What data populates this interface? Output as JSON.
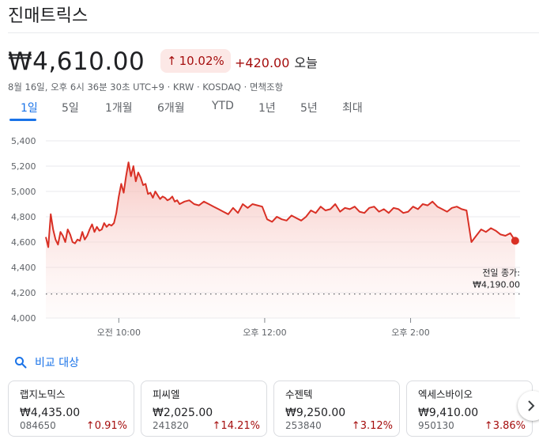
{
  "header": {
    "title": "진매트릭스"
  },
  "quote": {
    "price": "₩4,610.00",
    "change_pct": "10.02%",
    "change_abs": "+420.00",
    "change_period": "오늘",
    "meta": "8월 16일, 오후 6시 36분 30초 UTC+9 · KRW · KOSDAQ · 면책조항"
  },
  "tabs": [
    {
      "label": "1일",
      "active": true
    },
    {
      "label": "5일"
    },
    {
      "label": "1개월"
    },
    {
      "label": "6개월"
    },
    {
      "label": "YTD"
    },
    {
      "label": "1년"
    },
    {
      "label": "5년"
    },
    {
      "label": "최대"
    }
  ],
  "chart_data": {
    "type": "area",
    "y_ticks": [
      "5,400",
      "5,200",
      "5,000",
      "4,800",
      "4,600",
      "4,400",
      "4,200",
      "4,000"
    ],
    "ylim": [
      4000,
      5400
    ],
    "x_ticks": [
      {
        "label": "오전 10:00",
        "t": 60
      },
      {
        "label": "오후 12:00",
        "t": 180
      },
      {
        "label": "오후 2:00",
        "t": 300
      }
    ],
    "x_unit": "minutes since 09:00",
    "xlim": [
      0,
      390
    ],
    "previous_close": {
      "label": "전일 종가:",
      "value_label": "₩4,190.00",
      "value": 4190
    },
    "line_color": "#d93025",
    "fill_color": "#fce8e6",
    "series": [
      {
        "x": [
          0,
          2,
          4,
          6,
          8,
          10,
          12,
          14,
          16,
          18,
          20,
          22,
          24,
          26,
          28,
          30,
          32,
          34,
          36,
          38,
          40,
          42,
          44,
          46,
          48,
          50,
          52,
          54,
          56,
          58,
          60,
          62,
          64,
          66,
          68,
          70,
          72,
          74,
          76,
          78,
          80,
          82,
          84,
          86,
          88,
          90,
          92,
          94,
          96,
          98,
          100,
          102,
          104,
          106,
          108,
          110,
          114,
          118,
          122,
          126,
          130,
          134,
          138,
          142,
          146,
          150,
          154,
          158,
          162,
          166,
          170,
          174,
          178,
          182,
          186,
          190,
          194,
          198,
          202,
          206,
          210,
          214,
          218,
          222,
          226,
          230,
          234,
          238,
          242,
          246,
          250,
          254,
          258,
          262,
          266,
          270,
          274,
          278,
          282,
          286,
          290,
          294,
          298,
          302,
          306,
          310,
          314,
          318,
          322,
          326,
          330,
          334,
          338,
          342,
          346,
          350,
          354,
          358,
          362,
          366,
          370,
          374,
          378,
          382,
          386
        ],
        "values": [
          4640,
          4560,
          4820,
          4700,
          4620,
          4580,
          4680,
          4650,
          4600,
          4700,
          4660,
          4600,
          4590,
          4620,
          4610,
          4680,
          4620,
          4650,
          4700,
          4740,
          4680,
          4720,
          4690,
          4700,
          4750,
          4720,
          4740,
          4730,
          4750,
          4830,
          4960,
          5060,
          4990,
          5120,
          5230,
          5120,
          5200,
          5080,
          5150,
          5110,
          5050,
          5060,
          4980,
          4990,
          4950,
          5000,
          4970,
          4940,
          4960,
          4950,
          4930,
          4940,
          4960,
          4920,
          4930,
          4900,
          4920,
          4930,
          4900,
          4890,
          4920,
          4900,
          4880,
          4860,
          4840,
          4820,
          4870,
          4830,
          4900,
          4870,
          4900,
          4890,
          4880,
          4780,
          4760,
          4800,
          4780,
          4770,
          4810,
          4790,
          4770,
          4800,
          4850,
          4830,
          4880,
          4850,
          4860,
          4900,
          4840,
          4870,
          4860,
          4880,
          4840,
          4830,
          4870,
          4880,
          4840,
          4860,
          4830,
          4870,
          4860,
          4830,
          4840,
          4880,
          4860,
          4900,
          4890,
          4920,
          4880,
          4860,
          4840,
          4870,
          4880,
          4860,
          4850,
          4600,
          4650,
          4700,
          4680,
          4710,
          4690,
          4660,
          4650,
          4670,
          4610
        ]
      }
    ],
    "last_value": 4610
  },
  "compare": {
    "label": "비교 대상"
  },
  "cards": [
    {
      "name": "랩지노믹스",
      "price": "₩4,435.00",
      "code": "084650",
      "pct": "0.91%"
    },
    {
      "name": "피씨엘",
      "price": "₩2,025.00",
      "code": "241820",
      "pct": "14.21%"
    },
    {
      "name": "수젠텍",
      "price": "₩9,250.00",
      "code": "253840",
      "pct": "3.12%"
    },
    {
      "name": "엑세스바이오",
      "price": "₩9,410.00",
      "code": "950130",
      "pct": "3.86%"
    }
  ]
}
